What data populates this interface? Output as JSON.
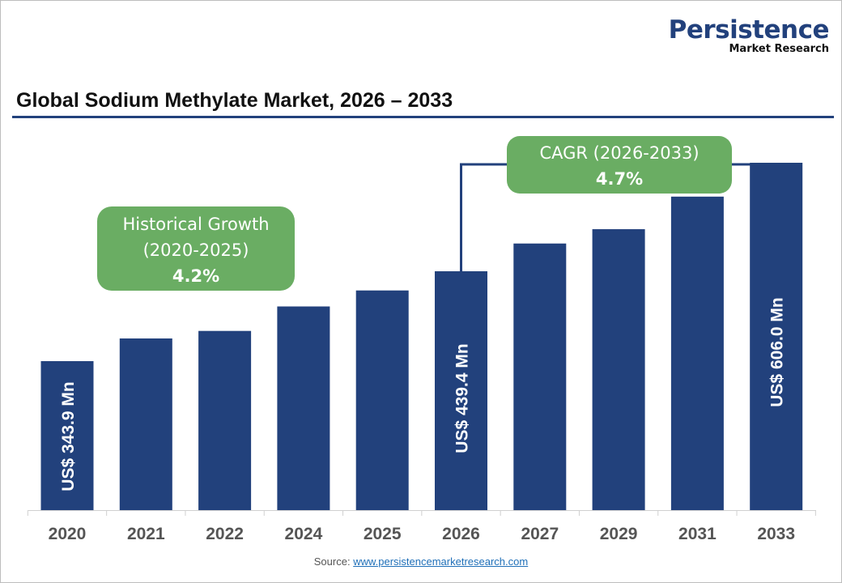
{
  "logo": {
    "line1": "Persistence",
    "line2": "Market Research"
  },
  "chart_data": {
    "type": "bar",
    "title": "Global Sodium Methylate Market, 2026 – 2033",
    "categories": [
      "2020",
      "2021",
      "2022",
      "2024",
      "2025",
      "2026",
      "2027",
      "2029",
      "2031",
      "2033"
    ],
    "values": [
      343.9,
      368,
      376,
      402,
      419,
      439.4,
      482,
      504,
      554,
      606.0
    ],
    "unit": "US$ Mn",
    "data_labels": {
      "2020": "US$ 343.9 Mn",
      "2026": "US$ 439.4 Mn",
      "2033": "US$ 606.0 Mn"
    },
    "grid": false,
    "legend": "none",
    "bar_color": "#22417c",
    "annotations": [
      {
        "line1": "Historical Growth",
        "line2": "(2020-2025)",
        "value": "4.2%",
        "color": "#6aad63"
      },
      {
        "line1": "CAGR (2026-2033)",
        "value": "4.7%",
        "color": "#6aad63"
      }
    ]
  },
  "source": {
    "label": "Source: ",
    "link": "www.persistencemarketresearch.com"
  }
}
